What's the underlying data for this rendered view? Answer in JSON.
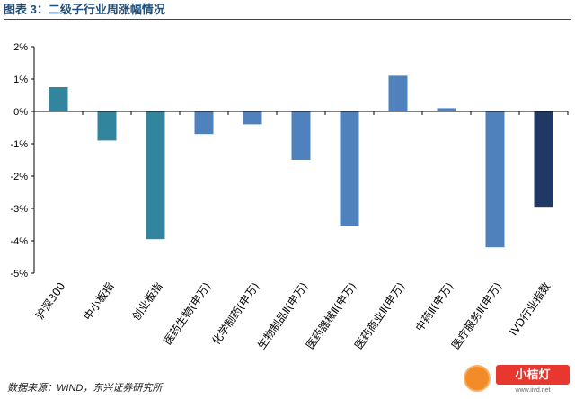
{
  "figure": {
    "title": "图表 3：二级子行业周涨幅情况",
    "source": "数据来源：WIND，东兴证券研究所"
  },
  "watermark": {
    "brand": "小桔灯",
    "url": "www.iivd.net",
    "icon": "orange-logo-icon"
  },
  "colors": {
    "teal": "#31859c",
    "blue": "#4f81bd",
    "navy": "#1f3864",
    "axis": "#000000",
    "title": "#1f4e79"
  },
  "chart_data": {
    "type": "bar",
    "categories": [
      "沪深300",
      "中小板指",
      "创业板指",
      "医药生物(申万)",
      "化学制药(申万)",
      "生物制品Ⅱ(申万)",
      "医药器械Ⅱ(申万)",
      "医药商业Ⅱ(申万)",
      "中药Ⅱ(申万)",
      "医疗服务Ⅱ(申万)",
      "IVD行业指数"
    ],
    "values": [
      0.75,
      -0.9,
      -3.95,
      -0.7,
      -0.4,
      -1.5,
      -3.55,
      1.1,
      0.1,
      -4.2,
      -2.95
    ],
    "bar_colors": [
      "teal",
      "teal",
      "teal",
      "blue",
      "blue",
      "blue",
      "blue",
      "blue",
      "blue",
      "blue",
      "navy"
    ],
    "unit": "%",
    "ylim": [
      -5,
      2
    ],
    "yticks": [
      2,
      1,
      0,
      -1,
      -2,
      -3,
      -4,
      -5
    ],
    "ytick_labels": [
      "2%",
      "1%",
      "0%",
      "-1%",
      "-2%",
      "-3%",
      "-4%",
      "-5%"
    ],
    "grid": false,
    "legend": "none"
  }
}
